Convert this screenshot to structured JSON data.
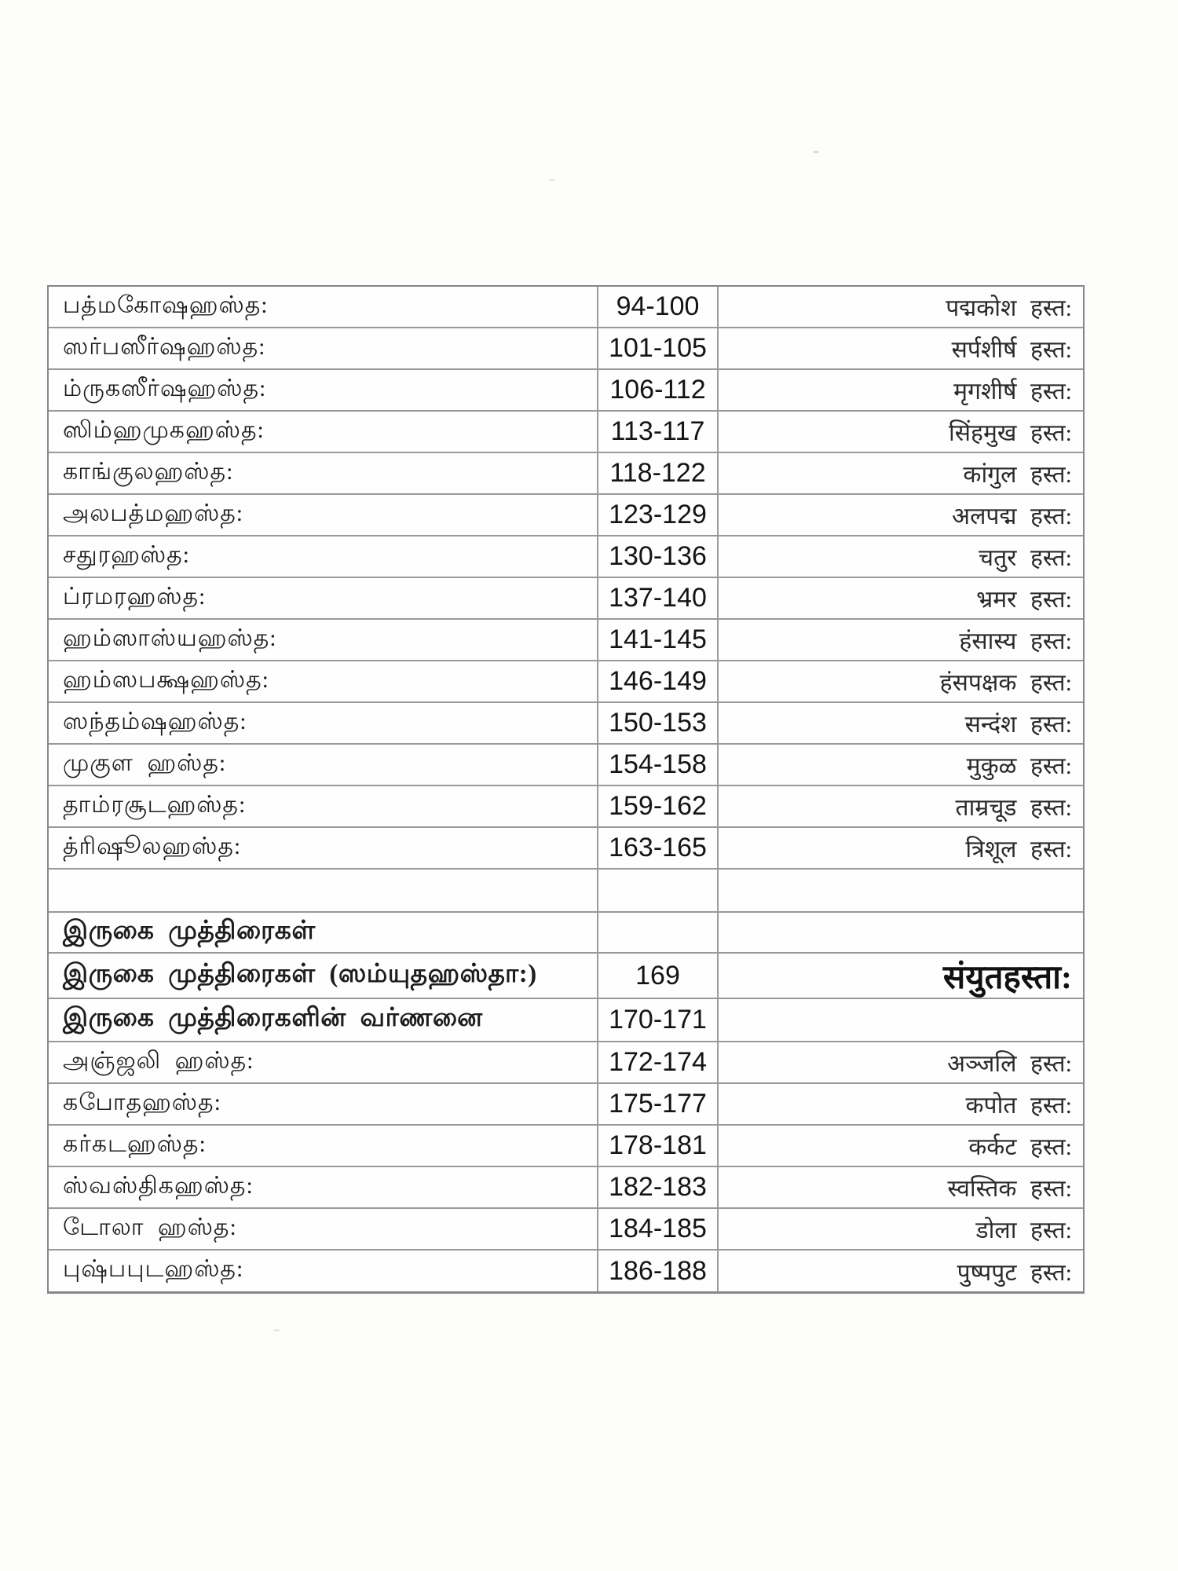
{
  "document": {
    "kind": "scanned table of contents page",
    "colors": {
      "paper": "#fdfdfc",
      "ink": "#1d1d1d",
      "grid_line": "#98999b",
      "outer_border": "#85878a"
    }
  },
  "table": {
    "rows": [
      {
        "tamil": "பத்மகோஷஹஸ்த:",
        "pages": "94-100",
        "sanskrit": "पद्मकोश हस्त:",
        "tamil_bold": false,
        "sanskrit_big": false
      },
      {
        "tamil": "ஸர்பஸீர்ஷஹஸ்த:",
        "pages": "101-105",
        "sanskrit": "सर्पशीर्ष हस्त:",
        "tamil_bold": false,
        "sanskrit_big": false
      },
      {
        "tamil": "ம்ருகஸீர்ஷஹஸ்த:",
        "pages": "106-112",
        "sanskrit": "मृगशीर्ष हस्त:",
        "tamil_bold": false,
        "sanskrit_big": false
      },
      {
        "tamil": "ஸிம்ஹமுகஹஸ்த:",
        "pages": "113-117",
        "sanskrit": "सिंहमुख हस्त:",
        "tamil_bold": false,
        "sanskrit_big": false
      },
      {
        "tamil": "காங்குலஹஸ்த:",
        "pages": "118-122",
        "sanskrit": "कांगुल हस्त:",
        "tamil_bold": false,
        "sanskrit_big": false
      },
      {
        "tamil": "அலபத்மஹஸ்த:",
        "pages": "123-129",
        "sanskrit": "अलपद्म हस्त:",
        "tamil_bold": false,
        "sanskrit_big": false
      },
      {
        "tamil": "சதுரஹஸ்த:",
        "pages": "130-136",
        "sanskrit": "चतुर हस्त:",
        "tamil_bold": false,
        "sanskrit_big": false
      },
      {
        "tamil": "ப்ரமரஹஸ்த:",
        "pages": "137-140",
        "sanskrit": "भ्रमर हस्त:",
        "tamil_bold": false,
        "sanskrit_big": false
      },
      {
        "tamil": "ஹம்ஸாஸ்யஹஸ்த:",
        "pages": "141-145",
        "sanskrit": "हंसास्य हस्त:",
        "tamil_bold": false,
        "sanskrit_big": false
      },
      {
        "tamil": "ஹம்ஸபக்ஷஹஸ்த:",
        "pages": "146-149",
        "sanskrit": "हंसपक्षक हस्त:",
        "tamil_bold": false,
        "sanskrit_big": false
      },
      {
        "tamil": "ஸந்தம்ஷஹஸ்த:",
        "pages": "150-153",
        "sanskrit": "सन्दंश हस्त:",
        "tamil_bold": false,
        "sanskrit_big": false
      },
      {
        "tamil": "முகுள ஹஸ்த:",
        "pages": "154-158",
        "sanskrit": "मुकुळ हस्त:",
        "tamil_bold": false,
        "sanskrit_big": false
      },
      {
        "tamil": "தாம்ரசூடஹஸ்த:",
        "pages": "159-162",
        "sanskrit": "ताम्रचूड हस्त:",
        "tamil_bold": false,
        "sanskrit_big": false
      },
      {
        "tamil": "த்ரிஷூலஹஸ்த:",
        "pages": "163-165",
        "sanskrit": "त्रिशूल हस्त:",
        "tamil_bold": false,
        "sanskrit_big": false
      },
      {
        "tamil": "",
        "pages": "",
        "sanskrit": "",
        "tamil_bold": false,
        "sanskrit_big": false
      },
      {
        "tamil": "இருகை முத்திரைகள்",
        "pages": "",
        "sanskrit": "",
        "tamil_bold": true,
        "sanskrit_big": false
      },
      {
        "tamil": "இருகை முத்திரைகள் (ஸம்யுதஹஸ்தா:)",
        "pages": "169",
        "sanskrit": "संयुतहस्ता:",
        "tamil_bold": true,
        "sanskrit_big": true
      },
      {
        "tamil": "இருகை முத்திரைகளின் வர்ணனை",
        "pages": "170-171",
        "sanskrit": "",
        "tamil_bold": true,
        "sanskrit_big": false
      },
      {
        "tamil": "அஞ்ஜலி ஹஸ்த:",
        "pages": "172-174",
        "sanskrit": "अञ्जलि हस्त:",
        "tamil_bold": false,
        "sanskrit_big": false
      },
      {
        "tamil": "கபோதஹஸ்த:",
        "pages": "175-177",
        "sanskrit": "कपोत हस्त:",
        "tamil_bold": false,
        "sanskrit_big": false
      },
      {
        "tamil": "கர்கடஹஸ்த:",
        "pages": "178-181",
        "sanskrit": "कर्कट हस्त:",
        "tamil_bold": false,
        "sanskrit_big": false
      },
      {
        "tamil": "ஸ்வஸ்திகஹஸ்த:",
        "pages": "182-183",
        "sanskrit": "स्वस्तिक हस्त:",
        "tamil_bold": false,
        "sanskrit_big": false
      },
      {
        "tamil": "டோலா ஹஸ்த:",
        "pages": "184-185",
        "sanskrit": "डोला हस्त:",
        "tamil_bold": false,
        "sanskrit_big": false
      },
      {
        "tamil": "புஷ்பபுடஹஸ்த:",
        "pages": "186-188",
        "sanskrit": "पुष्पपुट हस्त:",
        "tamil_bold": false,
        "sanskrit_big": false
      }
    ]
  }
}
